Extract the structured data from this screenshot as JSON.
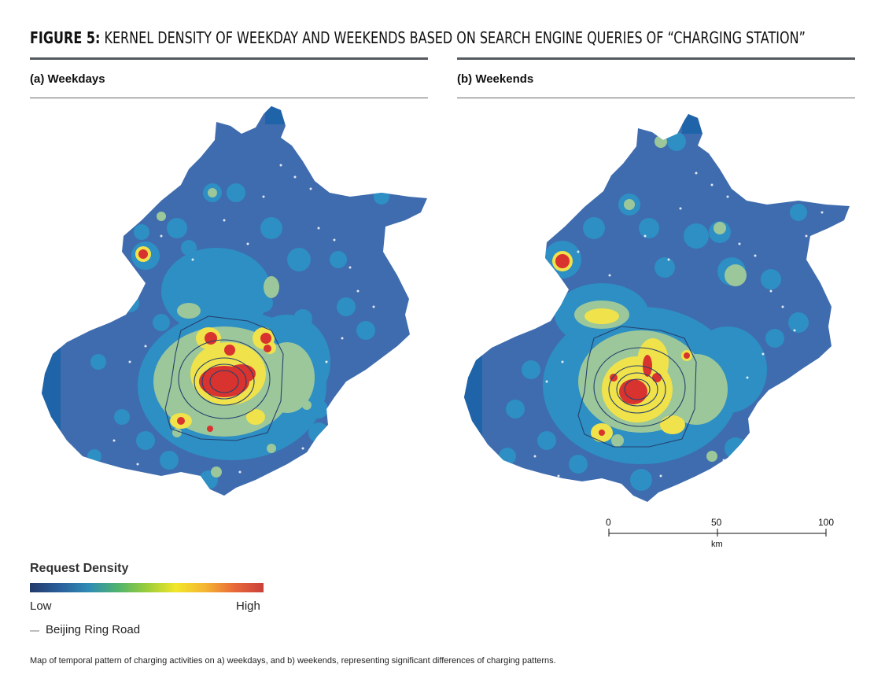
{
  "figure": {
    "title_lead": "FIGURE 5:",
    "title_rest": " KERNEL DENSITY OF WEEKDAY AND WEEKENDS BASED ON SEARCH ENGINE QUERIES OF “CHARGING STATION”"
  },
  "panels": [
    {
      "label": "(a) Weekdays"
    },
    {
      "label": "(b) Weekends"
    }
  ],
  "legend": {
    "title": "Request Density",
    "low": "Low",
    "high": "High",
    "ring_road": "Beijing Ring Road",
    "colors": [
      "#233a6c",
      "#2a5e9a",
      "#2f8bb5",
      "#4fb36f",
      "#9acd3a",
      "#f2e62a",
      "#f5b533",
      "#e9693a",
      "#c9403a"
    ]
  },
  "scale_bar": {
    "ticks": [
      "0",
      "50",
      "100"
    ],
    "unit": "km"
  },
  "caption": "Map of temporal pattern of charging activities on a) weekdays, and b) weekends, representing significant differences of charging patterns.",
  "colors": {
    "base": "#3f6cae",
    "cyan": "#2d8fc4",
    "green": "#9cc79a",
    "yellow": "#f0e24a",
    "red": "#d8332e",
    "edge": "#1f63a8"
  }
}
